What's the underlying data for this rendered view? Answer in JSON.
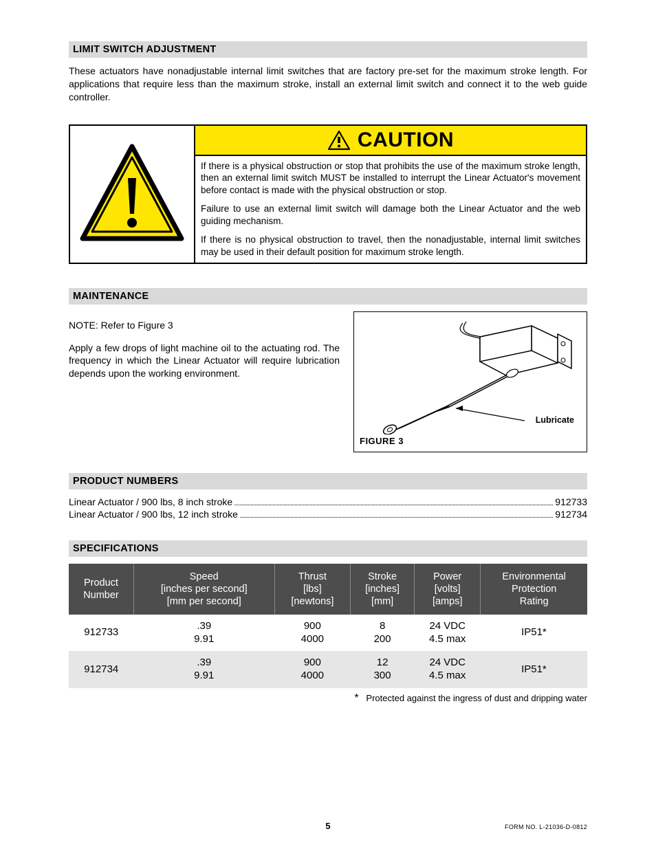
{
  "section_limit": {
    "heading": "LIMIT SWITCH ADJUSTMENT",
    "text": "These actuators have nonadjustable internal limit switches that are factory pre-set for the maximum stroke length.  For applications that require less than the maximum stroke, install an external limit switch and connect it to the web guide controller."
  },
  "caution": {
    "word": "CAUTION",
    "header_bg": "#ffe600",
    "triangle_stroke": "#000000",
    "triangle_fill": "#ffe600",
    "p1": "If there is a physical obstruction or stop that prohibits the use of the maximum stroke length, then an external limit switch MUST be installed to interrupt the Linear Actuator's movement before contact is made with the physical obstruction or stop.",
    "p2": "Failure to use an external limit switch will damage both the Linear Actuator and the web guiding mechanism.",
    "p3": "If there is no physical obstruction to travel, then the nonadjustable, internal limit switches may be used in their default position for maximum stroke length."
  },
  "section_maint": {
    "heading": "MAINTENANCE",
    "note": "NOTE:  Refer to Figure 3",
    "text": "Apply a few drops of light machine oil to the actuating rod. The frequency in which the Linear Actuator will require lubrication depends upon the working environment.",
    "figure_caption": "FIGURE  3",
    "lubricate_label": "Lubricate"
  },
  "section_pnum": {
    "heading": "PRODUCT NUMBERS",
    "rows": [
      {
        "name": "Linear Actuator / 900 lbs, 8 inch stroke",
        "num": "912733"
      },
      {
        "name": "Linear Actuator / 900 lbs, 12 inch stroke",
        "num": "912734"
      }
    ]
  },
  "section_spec": {
    "heading": "SPECIFICATIONS",
    "table": {
      "header_bg": "#4d4d4d",
      "header_fg": "#ffffff",
      "alt_row_bg": "#e6e6e6",
      "columns": [
        {
          "l1": "Product",
          "l2": "Number",
          "l3": ""
        },
        {
          "l1": "Speed",
          "l2": "[inches per second]",
          "l3": "[mm per second]"
        },
        {
          "l1": "Thrust",
          "l2": "[lbs]",
          "l3": "[newtons]"
        },
        {
          "l1": "Stroke",
          "l2": "[inches]",
          "l3": "[mm]"
        },
        {
          "l1": "Power",
          "l2": "[volts]",
          "l3": "[amps]"
        },
        {
          "l1": "Environmental",
          "l2": "Protection",
          "l3": "Rating"
        }
      ],
      "rows": [
        {
          "pn": "912733",
          "speed_l1": ".39",
          "speed_l2": "9.91",
          "thrust_l1": "900",
          "thrust_l2": "4000",
          "stroke_l1": "8",
          "stroke_l2": "200",
          "power_l1": "24 VDC",
          "power_l2": "4.5 max",
          "env": "IP51*"
        },
        {
          "pn": "912734",
          "speed_l1": ".39",
          "speed_l2": "9.91",
          "thrust_l1": "900",
          "thrust_l2": "4000",
          "stroke_l1": "12",
          "stroke_l2": "300",
          "power_l1": "24 VDC",
          "power_l2": "4.5 max",
          "env": "IP51*"
        }
      ]
    },
    "footnote_aster": "*",
    "footnote": "Protected against the ingress of dust and dripping water"
  },
  "footer": {
    "page": "5",
    "form": "FORM NO. L-21036-D-0812"
  }
}
